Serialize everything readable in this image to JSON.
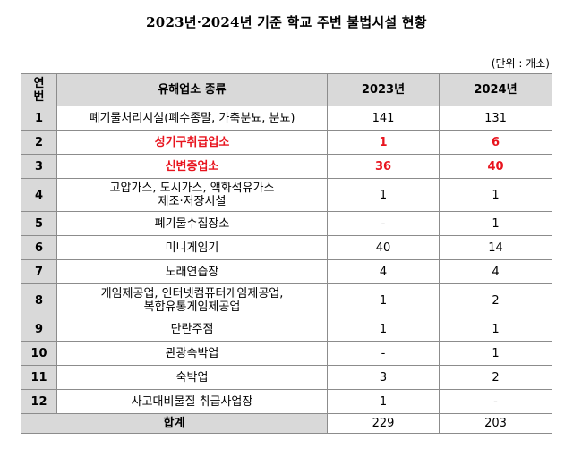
{
  "title": "2023년·2024년 기준 학교 주변 불법시설 현황",
  "unit": "(단위 : 개소)",
  "table": {
    "headers": {
      "no": "연\n번",
      "no_top": "연",
      "no_bottom": "번",
      "type": "유해업소 종류",
      "y2023": "2023년",
      "y2024": "2024년"
    },
    "rows": [
      {
        "no": "1",
        "lines": [
          "폐기물처리시설(폐수종말, 가축분뇨, 분뇨)"
        ],
        "y2023": "141",
        "y2024": "131",
        "highlight": false
      },
      {
        "no": "2",
        "lines": [
          "성기구취급업소"
        ],
        "y2023": "1",
        "y2024": "6",
        "highlight": true
      },
      {
        "no": "3",
        "lines": [
          "신변종업소"
        ],
        "y2023": "36",
        "y2024": "40",
        "highlight": true
      },
      {
        "no": "4",
        "lines": [
          "고압가스, 도시가스, 액화석유가스",
          "제조·저장시설"
        ],
        "y2023": "1",
        "y2024": "1",
        "highlight": false
      },
      {
        "no": "5",
        "lines": [
          "폐기물수집장소"
        ],
        "y2023": "-",
        "y2024": "1",
        "highlight": false
      },
      {
        "no": "6",
        "lines": [
          "미니게임기"
        ],
        "y2023": "40",
        "y2024": "14",
        "highlight": false
      },
      {
        "no": "7",
        "lines": [
          "노래연습장"
        ],
        "y2023": "4",
        "y2024": "4",
        "highlight": false
      },
      {
        "no": "8",
        "lines": [
          "게임제공업, 인터넷컴퓨터게임제공업,",
          "복합유통게임제공업"
        ],
        "y2023": "1",
        "y2024": "2",
        "highlight": false
      },
      {
        "no": "9",
        "lines": [
          "단란주점"
        ],
        "y2023": "1",
        "y2024": "1",
        "highlight": false
      },
      {
        "no": "10",
        "lines": [
          "관광숙박업"
        ],
        "y2023": "-",
        "y2024": "1",
        "highlight": false
      },
      {
        "no": "11",
        "lines": [
          "숙박업"
        ],
        "y2023": "3",
        "y2024": "2",
        "highlight": false
      },
      {
        "no": "12",
        "lines": [
          "사고대비물질 취급사업장"
        ],
        "y2023": "1",
        "y2024": "-",
        "highlight": false
      }
    ],
    "total": {
      "label": "합계",
      "y2023": "229",
      "y2024": "203"
    }
  },
  "colors": {
    "highlight_text": "#e8141e",
    "header_bg": "#d9d9d9",
    "border": "#8c8c8c"
  }
}
